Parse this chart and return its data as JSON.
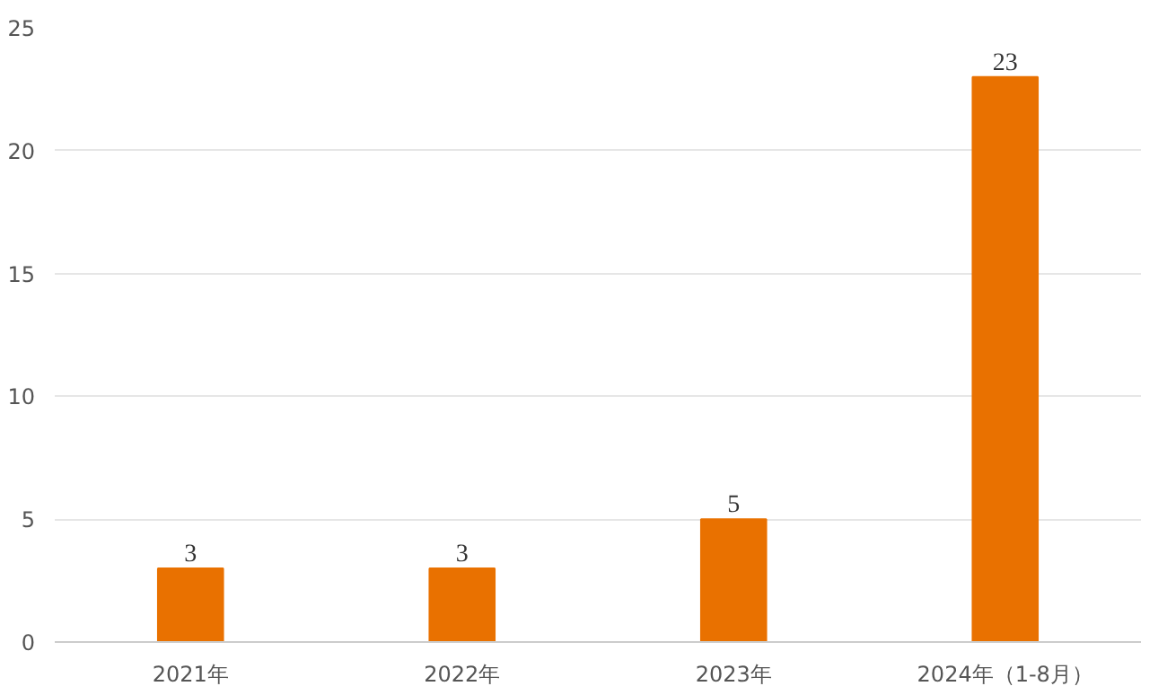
{
  "chart_data": {
    "type": "bar",
    "categories": [
      "2021年",
      "2022年",
      "2023年",
      "2024年（1-8月）"
    ],
    "values": [
      3,
      3,
      5,
      23
    ],
    "color": "#e97100",
    "ylim": [
      0,
      25
    ],
    "yticks": [
      0,
      5,
      10,
      15,
      20,
      25
    ],
    "grid": "y",
    "data_labels": true
  }
}
